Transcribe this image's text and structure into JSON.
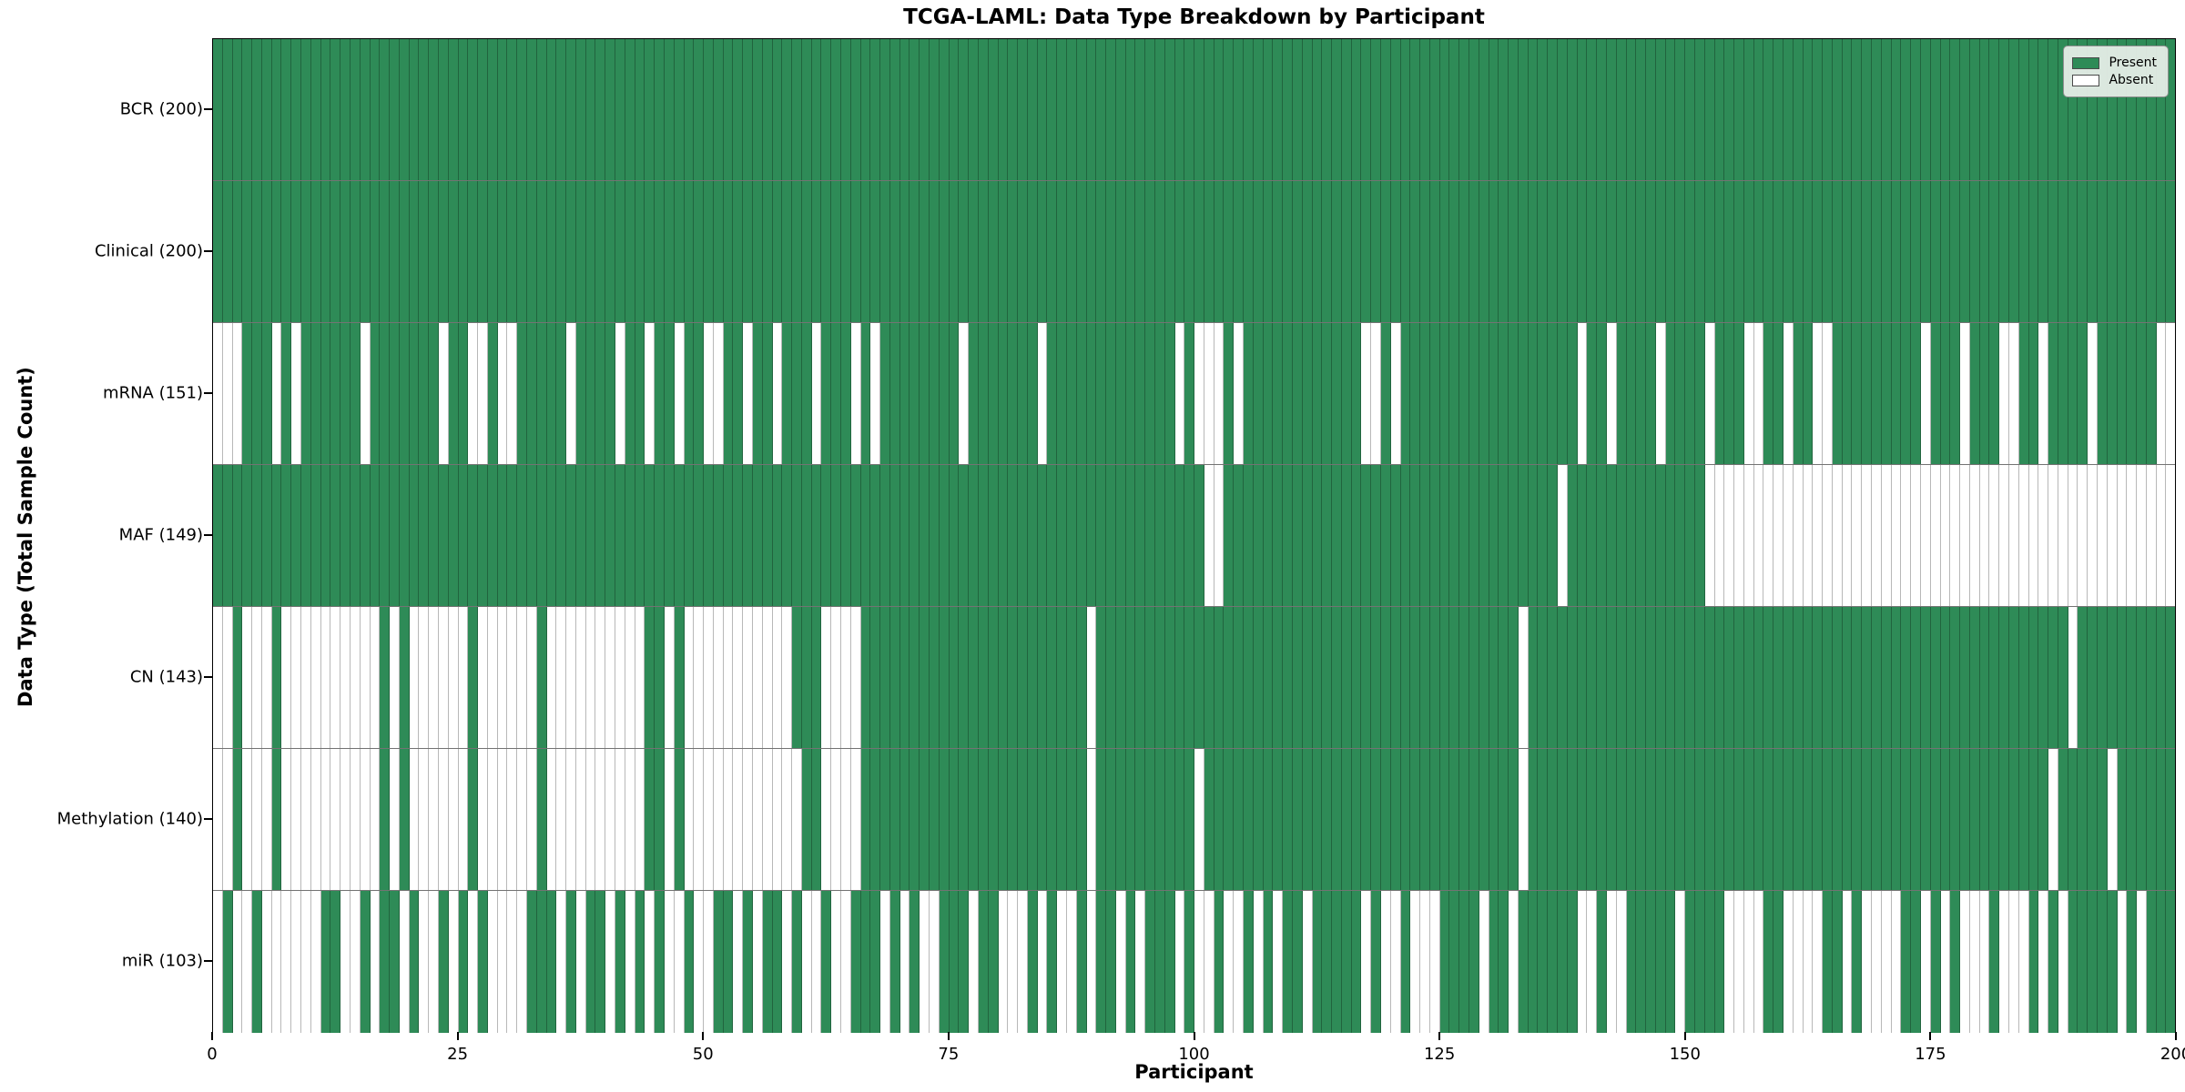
{
  "title": "TCGA-LAML: Data Type Breakdown by Participant",
  "axes": {
    "x_label": "Participant",
    "y_label": "Data Type (Total Sample Count)"
  },
  "legend": {
    "present_label": "Present",
    "absent_label": "Absent"
  },
  "colors": {
    "present": "#2E8B57",
    "absent": "#FFFFFF"
  },
  "chart_data": {
    "type": "heatmap",
    "title": "TCGA-LAML: Data Type Breakdown by Participant",
    "xlabel": "Participant",
    "ylabel": "Data Type (Total Sample Count)",
    "x_min": 0,
    "x_max": 200,
    "x_ticks": [
      0,
      25,
      50,
      75,
      100,
      125,
      150,
      175,
      200
    ],
    "legend_position": "upper right",
    "grid": "cell-borders",
    "value_encoding": "pattern strings: one char per participant (index 0-199), 1 = Present, 0 = Absent",
    "rows": [
      {
        "name": "BCR",
        "label": "BCR (200)",
        "present_count": 200,
        "pattern": "11111111111111111111111111111111111111111111111111111111111111111111111111111111111111111111111111111111111111111111111111111111111111111111111111111111111111111111111111111111111111111111111111111111"
      },
      {
        "name": "Clinical",
        "label": "Clinical (200)",
        "present_count": 200,
        "pattern": "11111111111111111111111111111111111111111111111111111111111111111111111111111111111111111111111111111111111111111111111111111111111111111111111111111111111111111111111111111111111111111111111111111111"
      },
      {
        "name": "mRNA",
        "label": "mRNA (151)",
        "present_count": 151,
        "pattern": "00011101011111101111111011001001111101111011011011001101101110111010111111110111111101111111111111010001011111111111100101111111111111111110110111101111011100110110011111111101110111001101111011111100"
      },
      {
        "name": "MAF",
        "label": "MAF (149)",
        "present_count": 149,
        "pattern": "11111111111111111111111111111111111111111111111111111111111111111111111111111111111111111111111111111001111111111111111111111111111111111011111111111111000000000000000000000000000000000000000000000000"
      },
      {
        "name": "CN",
        "label": "CN (143)",
        "present_count": 143,
        "pattern": "00100010000000000101000000100000010000000000110100000000000111000011111111111111111111111011111111111111111111111111111111111111111110111111111111111111111111111111111111111111111111111111101111111111"
      },
      {
        "name": "Methylation",
        "label": "Methylation (140)",
        "present_count": 140,
        "pattern": "00100010000000000101000000100000010000000000110100000000000011000011111111111111111111111011111111110111111111111111111111111111111110111111111111111111111111111111111111111111111111111110111110111111"
      },
      {
        "name": "miR",
        "label": "miR (103)",
        "present_count": 103,
        "pattern": "01001000000110010110100101010000111010110101010010011010110100100111010100111011000101001011010111010010010101101111101001000111101101111110010011111011110000110000110100001101010001000101011111010111"
      }
    ]
  }
}
